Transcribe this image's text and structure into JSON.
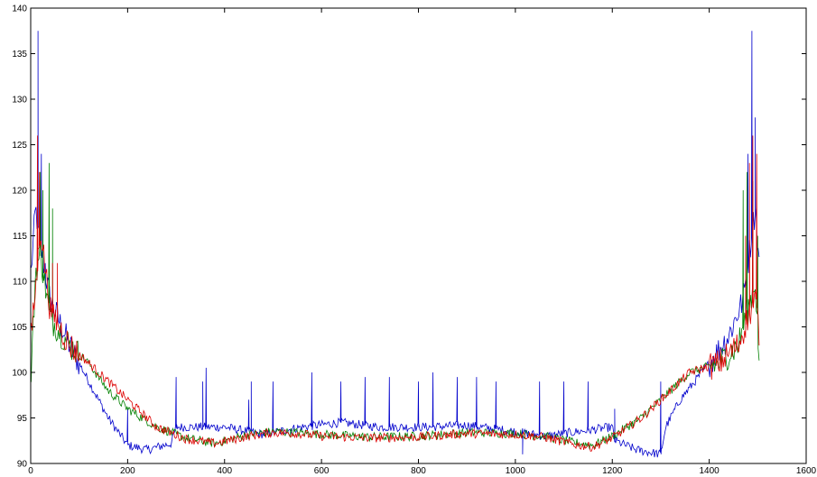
{
  "chart_data": {
    "type": "line",
    "title": "",
    "xlabel": "",
    "ylabel": "",
    "xlim": [
      0,
      1600
    ],
    "ylim": [
      90,
      140
    ],
    "xticks": [
      0,
      200,
      400,
      600,
      800,
      1000,
      1200,
      1400,
      1600
    ],
    "yticks": [
      90,
      95,
      100,
      105,
      110,
      115,
      120,
      125,
      130,
      135,
      140
    ],
    "x_range": [
      1,
      1504
    ],
    "series": [
      {
        "color": "#0000cc",
        "profile": [
          [
            1,
            111
          ],
          [
            10,
            118
          ],
          [
            20,
            114
          ],
          [
            40,
            108
          ],
          [
            80,
            103
          ],
          [
            120,
            99
          ],
          [
            160,
            95
          ],
          [
            200,
            92
          ],
          [
            240,
            91.5
          ],
          [
            290,
            92.2
          ],
          [
            300,
            94
          ],
          [
            400,
            94
          ],
          [
            480,
            93.2
          ],
          [
            560,
            94
          ],
          [
            640,
            94.5
          ],
          [
            720,
            94
          ],
          [
            820,
            94
          ],
          [
            900,
            94.2
          ],
          [
            1000,
            93.5
          ],
          [
            1060,
            93
          ],
          [
            1200,
            94
          ],
          [
            1205,
            92.5
          ],
          [
            1250,
            91.5
          ],
          [
            1300,
            91
          ],
          [
            1310,
            94
          ],
          [
            1340,
            97
          ],
          [
            1400,
            101
          ],
          [
            1440,
            104
          ],
          [
            1470,
            108
          ],
          [
            1485,
            114
          ],
          [
            1495,
            118
          ],
          [
            1504,
            111
          ]
        ],
        "spikes": [
          [
            15,
            137.5
          ],
          [
            22,
            124
          ],
          [
            30,
            112
          ],
          [
            200,
            96
          ],
          [
            300,
            99.5
          ],
          [
            355,
            99
          ],
          [
            362,
            100.5
          ],
          [
            450,
            97
          ],
          [
            455,
            99
          ],
          [
            500,
            99
          ],
          [
            580,
            100
          ],
          [
            640,
            99
          ],
          [
            690,
            99.5
          ],
          [
            740,
            99.5
          ],
          [
            800,
            99
          ],
          [
            830,
            100
          ],
          [
            880,
            99.5
          ],
          [
            920,
            99.5
          ],
          [
            960,
            99
          ],
          [
            1015,
            91
          ],
          [
            1050,
            99
          ],
          [
            1100,
            99
          ],
          [
            1150,
            99
          ],
          [
            1205,
            96
          ],
          [
            1300,
            99
          ],
          [
            1480,
            124
          ],
          [
            1488,
            137.5
          ],
          [
            1495,
            128
          ]
        ]
      },
      {
        "color": "#008000",
        "profile": [
          [
            1,
            100
          ],
          [
            10,
            111
          ],
          [
            20,
            113
          ],
          [
            40,
            106
          ],
          [
            80,
            103
          ],
          [
            120,
            101
          ],
          [
            160,
            98
          ],
          [
            200,
            96
          ],
          [
            260,
            94
          ],
          [
            320,
            92.8
          ],
          [
            380,
            92.2
          ],
          [
            450,
            93.2
          ],
          [
            500,
            93.5
          ],
          [
            550,
            93.4
          ],
          [
            600,
            93.2
          ],
          [
            700,
            92.9
          ],
          [
            800,
            93
          ],
          [
            900,
            93.4
          ],
          [
            1000,
            93.3
          ],
          [
            1060,
            93
          ],
          [
            1120,
            92.3
          ],
          [
            1160,
            92
          ],
          [
            1200,
            93
          ],
          [
            1260,
            95
          ],
          [
            1320,
            98
          ],
          [
            1360,
            100
          ],
          [
            1420,
            101
          ],
          [
            1460,
            103
          ],
          [
            1480,
            107
          ],
          [
            1495,
            110
          ],
          [
            1504,
            100
          ]
        ],
        "spikes": [
          [
            20,
            122
          ],
          [
            25,
            120
          ],
          [
            38,
            123
          ],
          [
            45,
            118
          ],
          [
            1470,
            120
          ],
          [
            1478,
            122
          ],
          [
            1490,
            121
          ],
          [
            1500,
            115
          ]
        ]
      },
      {
        "color": "#dd0000",
        "profile": [
          [
            1,
            104
          ],
          [
            10,
            109
          ],
          [
            20,
            116
          ],
          [
            40,
            107
          ],
          [
            80,
            103
          ],
          [
            120,
            101
          ],
          [
            160,
            99
          ],
          [
            200,
            97
          ],
          [
            260,
            94
          ],
          [
            320,
            92.7
          ],
          [
            380,
            92.2
          ],
          [
            450,
            93
          ],
          [
            500,
            93.4
          ],
          [
            550,
            93.3
          ],
          [
            600,
            93
          ],
          [
            700,
            92.8
          ],
          [
            800,
            92.9
          ],
          [
            900,
            93.3
          ],
          [
            1000,
            93.2
          ],
          [
            1060,
            92.9
          ],
          [
            1120,
            92.1
          ],
          [
            1160,
            91.8
          ],
          [
            1200,
            92.8
          ],
          [
            1260,
            95
          ],
          [
            1320,
            98
          ],
          [
            1360,
            100
          ],
          [
            1420,
            101
          ],
          [
            1460,
            103
          ],
          [
            1480,
            106
          ],
          [
            1495,
            108
          ],
          [
            1504,
            104
          ]
        ],
        "spikes": [
          [
            14,
            126
          ],
          [
            18,
            122
          ],
          [
            45,
            112
          ],
          [
            55,
            112
          ],
          [
            1475,
            115
          ],
          [
            1483,
            123
          ],
          [
            1490,
            126
          ],
          [
            1498,
            124
          ]
        ]
      }
    ]
  }
}
